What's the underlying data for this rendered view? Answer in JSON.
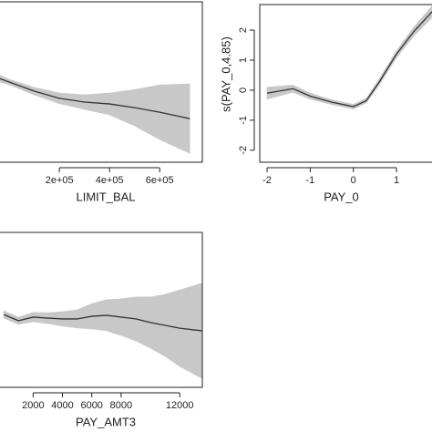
{
  "chart_data": [
    {
      "type": "line",
      "xlabel": "LIMIT_BAL",
      "x": [
        -50000,
        0,
        100000,
        200000,
        300000,
        400000,
        500000,
        600000,
        720000
      ],
      "values": [
        0.17,
        0,
        -0.34,
        -0.61,
        -0.75,
        -0.82,
        -0.96,
        -1.13,
        -1.37
      ],
      "lower": [
        0.03,
        -0.1,
        -0.48,
        -0.81,
        -1.02,
        -1.23,
        -1.64,
        -2.15,
        -2.67
      ],
      "upper": [
        0.31,
        0.1,
        -0.2,
        -0.41,
        -0.48,
        -0.41,
        -0.28,
        -0.11,
        -0.07
      ],
      "color": "#333333",
      "band_color": "#c8c8c8",
      "xlim": [
        -55000,
        770000
      ],
      "ylim": [
        -3,
        3
      ],
      "xticks": [
        {
          "value": 200000,
          "label": "2e+05"
        },
        {
          "value": 400000,
          "label": "4e+05"
        },
        {
          "value": 600000,
          "label": "6e+05"
        }
      ]
    },
    {
      "type": "line",
      "xlabel": "PAY_0",
      "ylabel": "s(PAY_0,4.85)",
      "x": [
        -2,
        -1.4,
        -1,
        -0.5,
        0,
        0.3,
        0.6,
        1,
        1.4,
        1.85
      ],
      "values": [
        -0.1,
        0.05,
        -0.2,
        -0.4,
        -0.55,
        -0.35,
        0.27,
        1.2,
        1.95,
        2.65
      ],
      "lower": [
        -0.3,
        -0.07,
        -0.3,
        -0.48,
        -0.63,
        -0.43,
        0.17,
        1.08,
        1.8,
        2.45
      ],
      "upper": [
        0.1,
        0.17,
        -0.1,
        -0.32,
        -0.47,
        -0.27,
        0.37,
        1.32,
        2.1,
        2.85
      ],
      "color": "#333333",
      "band_color": "#c8c8c8",
      "xlim": [
        -2.17,
        1.95
      ],
      "ylim": [
        -2.4,
        2.85
      ],
      "xticks": [
        -2,
        -1,
        0,
        1
      ],
      "yticks": [
        -2,
        -1,
        0,
        1,
        2
      ]
    },
    {
      "type": "line",
      "xlabel": "PAY_AMT3",
      "x": [
        0,
        1000,
        2000,
        3000,
        4000,
        5000,
        6000,
        7000,
        8000,
        9000,
        10000,
        11000,
        12000,
        13500
      ],
      "values": [
        -0.18,
        -0.42,
        -0.28,
        -0.32,
        -0.35,
        -0.35,
        -0.25,
        -0.21,
        -0.28,
        -0.35,
        -0.49,
        -0.6,
        -0.71,
        -0.81
      ],
      "lower": [
        -0.32,
        -0.56,
        -0.46,
        -0.53,
        -0.63,
        -0.7,
        -0.74,
        -0.81,
        -0.99,
        -1.2,
        -1.48,
        -1.8,
        -2.19,
        -2.65
      ],
      "upper": [
        -0.04,
        -0.28,
        -0.1,
        -0.11,
        -0.07,
        0,
        0.24,
        0.39,
        0.43,
        0.5,
        0.5,
        0.6,
        0.77,
        1.03
      ],
      "color": "#333333",
      "band_color": "#c8c8c8",
      "xlim": [
        -570,
        13540
      ],
      "ylim": [
        -3,
        3
      ],
      "xticks": [
        2000,
        4000,
        6000,
        8000,
        12000
      ]
    }
  ]
}
